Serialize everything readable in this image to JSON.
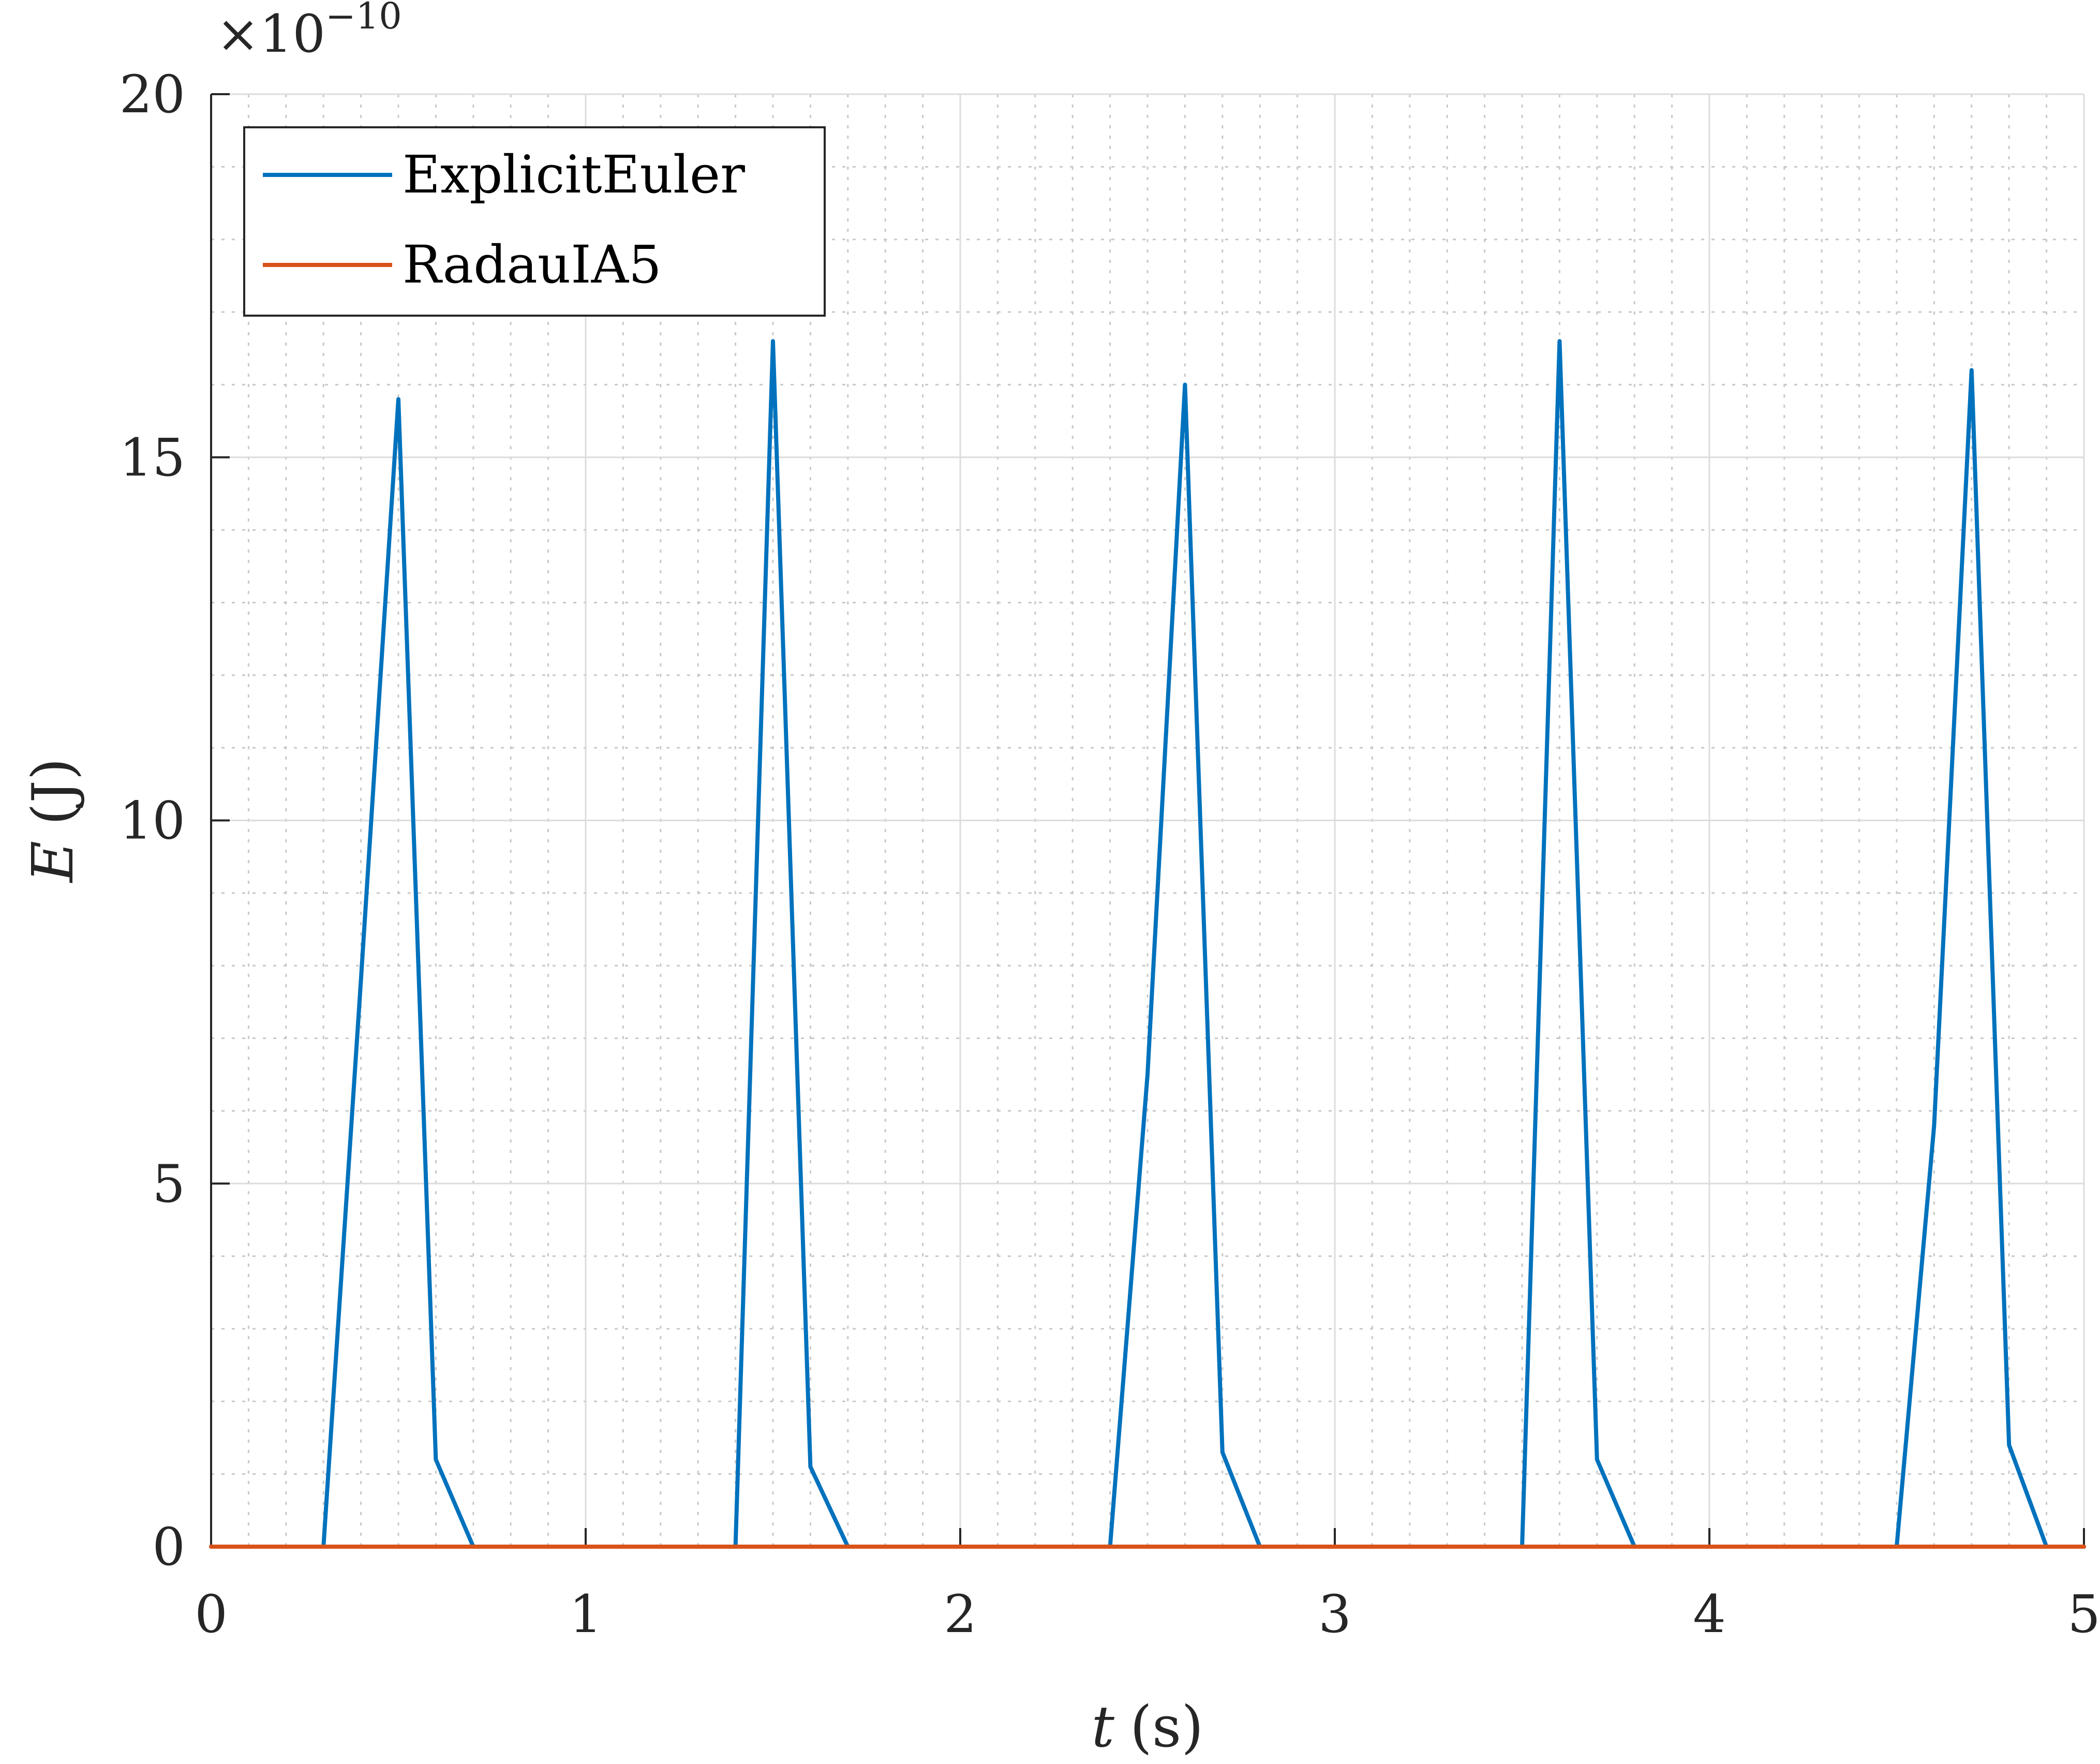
{
  "chart_data": {
    "type": "line",
    "title": "",
    "xlabel_var": "t",
    "xlabel_unit": "(s)",
    "ylabel_var": "E",
    "ylabel_unit": "(J)",
    "y_exponent_label": "×10",
    "y_exponent_power": "−10",
    "xlim": [
      0,
      5
    ],
    "ylim": [
      0,
      20
    ],
    "xticks": [
      0,
      1,
      2,
      3,
      4,
      5
    ],
    "xtick_labels": [
      "0",
      "1",
      "2",
      "3",
      "4",
      "5"
    ],
    "yticks": [
      0,
      5,
      10,
      15,
      20
    ],
    "ytick_labels": [
      "0",
      "5",
      "10",
      "15",
      "20"
    ],
    "grid": true,
    "minor_grid": true,
    "legend_position": "top-left",
    "series": [
      {
        "name": "ExplicitEuler",
        "color": "#0072BD",
        "x": [
          0,
          0.3,
          0.4,
          0.5,
          0.6,
          0.7,
          1.4,
          1.5,
          1.6,
          1.7,
          2.4,
          2.5,
          2.6,
          2.7,
          2.8,
          3.5,
          3.6,
          3.7,
          3.8,
          4.5,
          4.6,
          4.7,
          4.8,
          4.9,
          5.0
        ],
        "y": [
          0,
          0,
          7.8,
          15.8,
          1.2,
          0,
          0,
          16.6,
          1.1,
          0,
          0,
          6.5,
          16.0,
          1.3,
          0,
          0,
          16.6,
          1.2,
          0,
          0,
          5.8,
          16.2,
          1.4,
          0,
          0
        ]
      },
      {
        "name": "RadauIA5",
        "color": "#D95319",
        "x": [
          0,
          5
        ],
        "y": [
          0,
          0
        ]
      }
    ]
  }
}
